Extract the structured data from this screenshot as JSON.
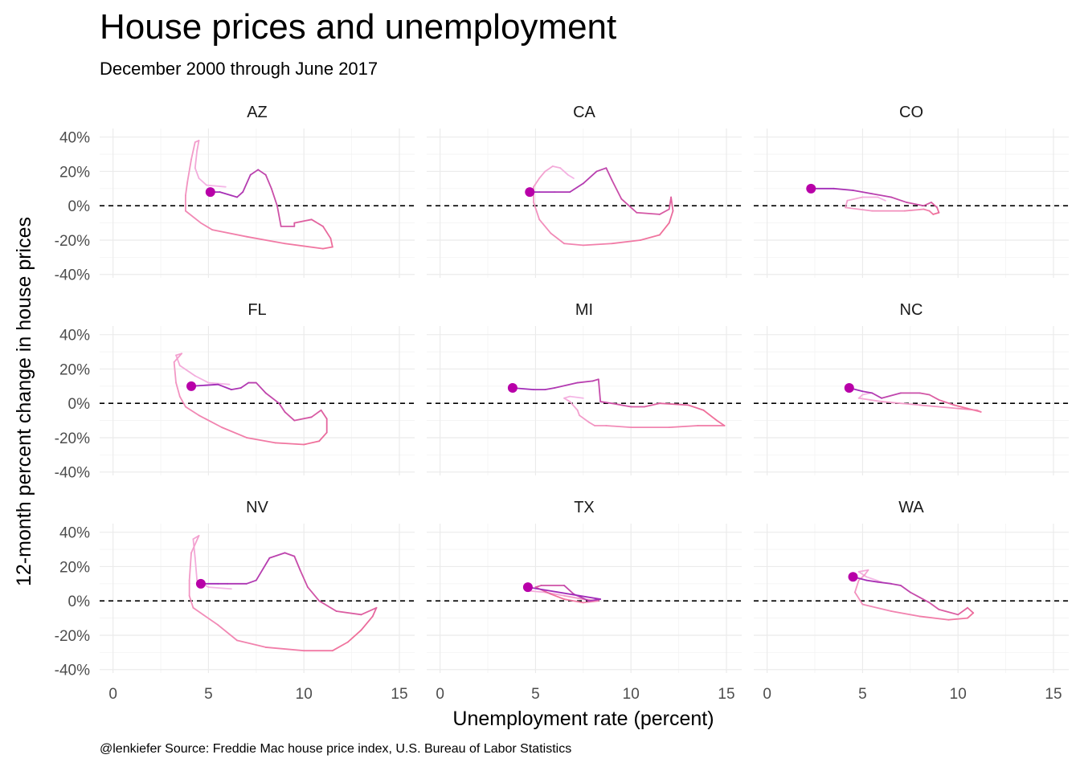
{
  "title": "House prices and unemployment",
  "subtitle": "December 2000 through June 2017",
  "caption": "@lenkiefer Source: Freddie Mac house price index, U.S. Bureau of Labor Statistics",
  "colors": {
    "early": "#f4b6e6",
    "mid": "#f0709a",
    "late": "#a12bb8",
    "end_point": "#b800a8"
  },
  "chart_data": {
    "type": "line",
    "title": "House prices and unemployment",
    "subtitle": "December 2000 through June 2017",
    "xlabel": "Unemployment rate (percent)",
    "ylabel": "12-month percent change in house prices",
    "xlim": [
      -0.7,
      15.8
    ],
    "ylim": [
      -42,
      45
    ],
    "x_ticks": [
      "0",
      "5",
      "10",
      "15"
    ],
    "x_tick_values": [
      0,
      5,
      10,
      15
    ],
    "y_ticks": [
      "40%",
      "20%",
      "0%",
      "-20%",
      "-40%"
    ],
    "y_tick_values": [
      40,
      20,
      0,
      -20,
      -40
    ],
    "reference_line": {
      "y": 0,
      "style": "dashed"
    },
    "grid": true,
    "facets": [
      {
        "name": "AZ",
        "points": [
          [
            5.9,
            11
          ],
          [
            4.9,
            12
          ],
          [
            4.5,
            16
          ],
          [
            4.3,
            22
          ],
          [
            4.4,
            32
          ],
          [
            4.5,
            38
          ],
          [
            4.3,
            37
          ],
          [
            4.1,
            27
          ],
          [
            3.9,
            14
          ],
          [
            3.8,
            6
          ],
          [
            3.8,
            -3
          ],
          [
            4.6,
            -10
          ],
          [
            5.2,
            -14
          ],
          [
            7,
            -18
          ],
          [
            9,
            -22
          ],
          [
            11,
            -25
          ],
          [
            11.5,
            -24
          ],
          [
            11.4,
            -19
          ],
          [
            11,
            -12
          ],
          [
            10.4,
            -8
          ],
          [
            9.5,
            -10
          ],
          [
            9.5,
            -12
          ],
          [
            8.8,
            -12
          ],
          [
            8.6,
            0
          ],
          [
            8.3,
            10
          ],
          [
            8,
            18
          ],
          [
            7.6,
            21
          ],
          [
            7.2,
            18
          ],
          [
            6.8,
            8
          ],
          [
            6.5,
            5
          ],
          [
            6.2,
            6
          ],
          [
            5.6,
            8
          ],
          [
            5.1,
            8
          ]
        ],
        "end": [
          5.1,
          8
        ]
      },
      {
        "name": "CA",
        "points": [
          [
            7,
            16
          ],
          [
            6.7,
            18
          ],
          [
            6.3,
            22
          ],
          [
            5.9,
            23
          ],
          [
            5.5,
            20
          ],
          [
            5.2,
            16
          ],
          [
            4.9,
            11
          ],
          [
            4.9,
            2
          ],
          [
            5.2,
            -8
          ],
          [
            5.8,
            -16
          ],
          [
            6.5,
            -22
          ],
          [
            7.5,
            -23
          ],
          [
            9,
            -22
          ],
          [
            10.5,
            -20
          ],
          [
            11.5,
            -17
          ],
          [
            12,
            -10
          ],
          [
            12.2,
            -3
          ],
          [
            12.1,
            5
          ],
          [
            12,
            -2
          ],
          [
            11.5,
            -5
          ],
          [
            10.3,
            -4
          ],
          [
            9.5,
            4
          ],
          [
            9,
            15
          ],
          [
            8.7,
            22
          ],
          [
            8.2,
            20
          ],
          [
            7.5,
            13
          ],
          [
            6.8,
            8
          ],
          [
            6,
            8
          ],
          [
            5.2,
            8
          ],
          [
            4.7,
            8
          ]
        ],
        "end": [
          4.7,
          8
        ]
      },
      {
        "name": "CO",
        "points": [
          [
            6.2,
            3
          ],
          [
            5.8,
            5
          ],
          [
            5,
            5
          ],
          [
            4.2,
            3
          ],
          [
            4.1,
            -1
          ],
          [
            5.5,
            -3
          ],
          [
            7.2,
            -3
          ],
          [
            8.2,
            -2
          ],
          [
            8.5,
            -3
          ],
          [
            8.7,
            -5
          ],
          [
            9,
            -4
          ],
          [
            8.9,
            -1
          ],
          [
            8.6,
            2
          ],
          [
            8.2,
            0
          ],
          [
            7.3,
            2
          ],
          [
            6.5,
            5
          ],
          [
            5.5,
            7
          ],
          [
            4.5,
            9
          ],
          [
            3.5,
            10
          ],
          [
            2.3,
            10
          ]
        ],
        "end": [
          2.3,
          10
        ]
      },
      {
        "name": "FL",
        "points": [
          [
            6.1,
            11
          ],
          [
            5,
            12
          ],
          [
            4.3,
            16
          ],
          [
            3.5,
            22
          ],
          [
            3.3,
            28
          ],
          [
            3.6,
            29
          ],
          [
            3.2,
            24
          ],
          [
            3.3,
            12
          ],
          [
            3.5,
            4
          ],
          [
            3.8,
            -2
          ],
          [
            4.5,
            -7
          ],
          [
            5.7,
            -14
          ],
          [
            7,
            -20
          ],
          [
            8.5,
            -23
          ],
          [
            10,
            -24
          ],
          [
            10.8,
            -22
          ],
          [
            11.2,
            -17
          ],
          [
            11.2,
            -9
          ],
          [
            10.9,
            -4
          ],
          [
            10.4,
            -8
          ],
          [
            9.5,
            -10
          ],
          [
            9,
            -5
          ],
          [
            8.7,
            0
          ],
          [
            8,
            6
          ],
          [
            7.5,
            12
          ],
          [
            7.1,
            12
          ],
          [
            6.7,
            9
          ],
          [
            6.2,
            8
          ],
          [
            5.5,
            11
          ],
          [
            4.1,
            10
          ]
        ],
        "end": [
          4.1,
          10
        ]
      },
      {
        "name": "MI",
        "points": [
          [
            7.5,
            3
          ],
          [
            6.8,
            4
          ],
          [
            6.5,
            3
          ],
          [
            6.8,
            1
          ],
          [
            7.2,
            -4
          ],
          [
            7.3,
            -7
          ],
          [
            7.8,
            -11
          ],
          [
            8.1,
            -13
          ],
          [
            8.7,
            -13
          ],
          [
            10,
            -14
          ],
          [
            12,
            -14
          ],
          [
            13.5,
            -13
          ],
          [
            14.9,
            -13
          ],
          [
            14.5,
            -10
          ],
          [
            13.8,
            -4
          ],
          [
            13,
            -1
          ],
          [
            11.5,
            0
          ],
          [
            10.7,
            -2
          ],
          [
            10,
            -2
          ],
          [
            9,
            0
          ],
          [
            8.4,
            1
          ],
          [
            8.3,
            14
          ],
          [
            8,
            13
          ],
          [
            7.2,
            12
          ],
          [
            6,
            9
          ],
          [
            5.5,
            8
          ],
          [
            4.9,
            8
          ],
          [
            3.8,
            9
          ]
        ],
        "end": [
          3.8,
          9
        ]
      },
      {
        "name": "NC",
        "points": [
          [
            5.4,
            6
          ],
          [
            5,
            5
          ],
          [
            4.8,
            3
          ],
          [
            6,
            1
          ],
          [
            8,
            -1
          ],
          [
            10,
            -3
          ],
          [
            11,
            -4
          ],
          [
            11.2,
            -5
          ],
          [
            10.5,
            -3
          ],
          [
            9.8,
            -1
          ],
          [
            9,
            2
          ],
          [
            8.5,
            5
          ],
          [
            8,
            6
          ],
          [
            7,
            6
          ],
          [
            6,
            3
          ],
          [
            5.5,
            6
          ],
          [
            5,
            7
          ],
          [
            4.3,
            9
          ]
        ],
        "end": [
          4.3,
          9
        ]
      },
      {
        "name": "NV",
        "points": [
          [
            6.2,
            7
          ],
          [
            5,
            8
          ],
          [
            4.4,
            12
          ],
          [
            4.3,
            25
          ],
          [
            4.2,
            36
          ],
          [
            4.5,
            38
          ],
          [
            4.1,
            28
          ],
          [
            4,
            12
          ],
          [
            4,
            3
          ],
          [
            4.2,
            -4
          ],
          [
            5.5,
            -14
          ],
          [
            6.5,
            -23
          ],
          [
            8,
            -27
          ],
          [
            10,
            -29
          ],
          [
            11.5,
            -29
          ],
          [
            12.3,
            -24
          ],
          [
            13,
            -17
          ],
          [
            13.6,
            -9
          ],
          [
            13.8,
            -4
          ],
          [
            13,
            -8
          ],
          [
            11.7,
            -6
          ],
          [
            10.8,
            0
          ],
          [
            10.2,
            8
          ],
          [
            9.8,
            18
          ],
          [
            9.5,
            26
          ],
          [
            9,
            28
          ],
          [
            8.2,
            25
          ],
          [
            7.5,
            12
          ],
          [
            7,
            10
          ],
          [
            6,
            10
          ],
          [
            5.5,
            10
          ],
          [
            4.6,
            10
          ]
        ],
        "end": [
          4.6,
          10
        ]
      },
      {
        "name": "TX",
        "points": [
          [
            4.6,
            8
          ],
          [
            4.5,
            6
          ],
          [
            5.5,
            5
          ],
          [
            6.5,
            3
          ],
          [
            7.5,
            1
          ],
          [
            8.3,
            0
          ],
          [
            7.5,
            -1
          ],
          [
            6.5,
            1
          ],
          [
            5.8,
            4
          ],
          [
            5,
            8
          ],
          [
            5.3,
            9
          ],
          [
            6.5,
            9
          ],
          [
            7,
            4
          ],
          [
            7.8,
            0
          ],
          [
            8.4,
            1
          ],
          [
            4.6,
            8
          ]
        ],
        "end": [
          4.6,
          8
        ]
      },
      {
        "name": "WA",
        "points": [
          [
            6,
            11
          ],
          [
            5.2,
            14
          ],
          [
            4.8,
            17
          ],
          [
            5.3,
            18
          ],
          [
            5.1,
            15
          ],
          [
            4.8,
            12
          ],
          [
            4.6,
            5
          ],
          [
            5,
            -2
          ],
          [
            6.5,
            -6
          ],
          [
            8,
            -9
          ],
          [
            9.5,
            -11
          ],
          [
            10.5,
            -10
          ],
          [
            10.8,
            -7
          ],
          [
            10.5,
            -4
          ],
          [
            10,
            -8
          ],
          [
            9,
            -5
          ],
          [
            8.5,
            -1
          ],
          [
            8,
            2
          ],
          [
            7.5,
            5
          ],
          [
            7,
            9
          ],
          [
            6.5,
            10
          ],
          [
            5.8,
            11
          ],
          [
            5.2,
            12
          ],
          [
            4.5,
            14
          ]
        ],
        "end": [
          4.5,
          14
        ]
      }
    ]
  }
}
